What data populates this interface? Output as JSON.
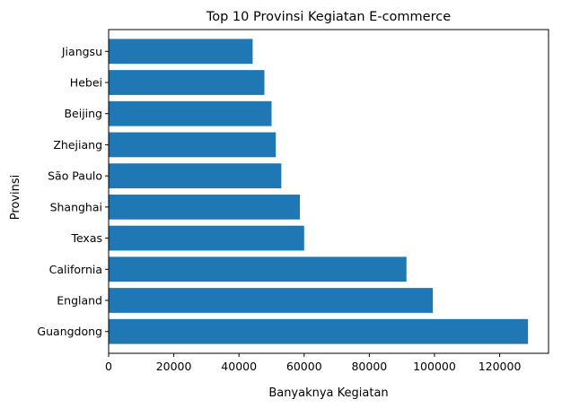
{
  "chart_data": {
    "type": "bar",
    "orientation": "horizontal",
    "title": "Top 10 Provinsi Kegiatan E-commerce",
    "xlabel": "Banyaknya Kegiatan",
    "ylabel": "Provinsi",
    "categories": [
      "Guangdong",
      "England",
      "California",
      "Texas",
      "Shanghai",
      "São Paulo",
      "Zhejiang",
      "Beijing",
      "Hebei",
      "Jiangsu"
    ],
    "values": [
      128700,
      99500,
      91400,
      60000,
      58700,
      53000,
      51300,
      50000,
      47800,
      44200
    ],
    "xlim": [
      0,
      135000
    ],
    "xticks": [
      0,
      20000,
      40000,
      60000,
      80000,
      100000,
      120000
    ],
    "bar_color": "#1f77b4",
    "grid": false,
    "legend": "none"
  }
}
